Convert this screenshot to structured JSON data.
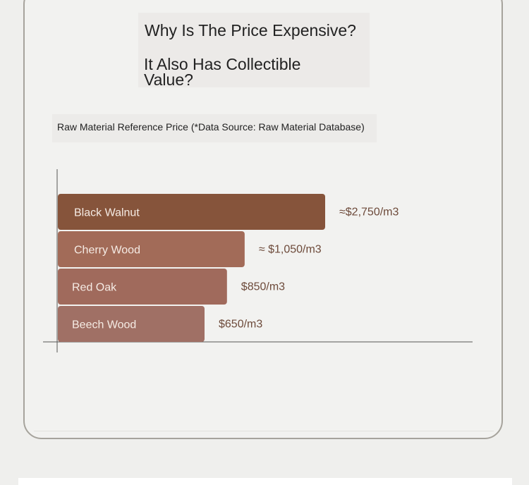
{
  "heading": {
    "line1": "Why Is The Price Expensive?",
    "line2": "It Also Has Collectible Value?"
  },
  "colors": {
    "bar_colors": [
      "#86543b",
      "#a26b58",
      "#a06a5c",
      "#a07065"
    ],
    "value_text": "#6d4a3a",
    "axis": "#555555"
  },
  "chart_data": {
    "type": "bar",
    "orientation": "horizontal",
    "title": "Raw Material Reference Price (*Data Source: Raw Material Database)",
    "categories": [
      "Black Walnut",
      "Cherry Wood",
      "Red Oak",
      "Beech Wood"
    ],
    "values": [
      2750,
      1050,
      850,
      650
    ],
    "value_labels": [
      "≈$2,750/m3",
      "≈ $1,050/m3",
      "$850/m3",
      "$650/m3"
    ],
    "unit": "$/m3",
    "grid": false,
    "legend": "none"
  }
}
